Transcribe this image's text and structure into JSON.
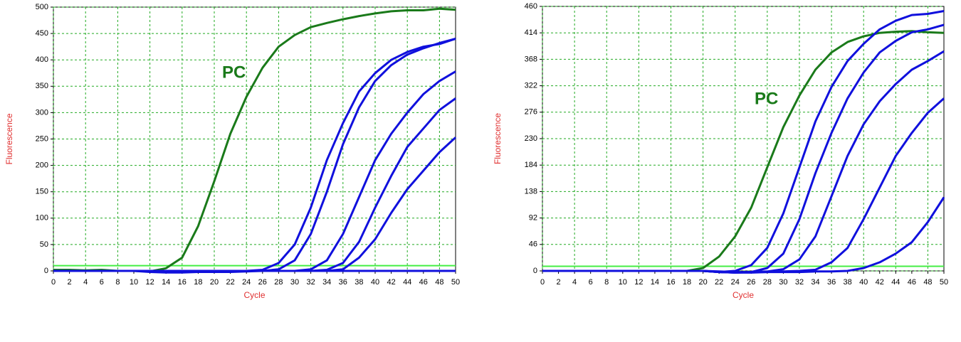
{
  "chart_data": [
    {
      "type": "line",
      "x_label": "Cycle",
      "y_label": "Fluorescence",
      "annotation": "PC",
      "x": [
        0,
        2,
        4,
        6,
        8,
        10,
        12,
        14,
        16,
        18,
        20,
        22,
        24,
        26,
        28,
        30,
        32,
        34,
        36,
        38,
        40,
        42,
        44,
        46,
        48,
        50
      ],
      "xlim": [
        0,
        50
      ],
      "xticks": [
        0,
        2,
        4,
        6,
        8,
        10,
        12,
        14,
        16,
        18,
        20,
        22,
        24,
        26,
        28,
        30,
        32,
        34,
        36,
        38,
        40,
        42,
        44,
        46,
        48,
        50
      ],
      "ylim": [
        0,
        500
      ],
      "yticks": [
        0,
        50,
        100,
        150,
        200,
        250,
        300,
        350,
        400,
        450,
        500
      ],
      "grid": true,
      "grid_color": "#22aa22",
      "threshold": 10,
      "threshold_color": "#44ee44",
      "series": [
        {
          "color": "#1a7a1a",
          "values": [
            2,
            2,
            1,
            2,
            0,
            0,
            -1,
            5,
            25,
            85,
            170,
            260,
            330,
            385,
            425,
            447,
            462,
            470,
            477,
            483,
            488,
            492,
            494,
            494,
            497,
            495
          ]
        },
        {
          "color": "#1010dd",
          "values": [
            0,
            0,
            0,
            0,
            0,
            0,
            0,
            0,
            0,
            0,
            0,
            0,
            0,
            2,
            15,
            50,
            120,
            210,
            280,
            340,
            375,
            400,
            415,
            425,
            430,
            440
          ]
        },
        {
          "color": "#1010dd",
          "values": [
            0,
            0,
            0,
            0,
            0,
            0,
            0,
            0,
            0,
            0,
            0,
            0,
            0,
            0,
            3,
            20,
            70,
            150,
            240,
            310,
            360,
            390,
            410,
            422,
            432,
            440
          ]
        },
        {
          "color": "#1010dd",
          "values": [
            0,
            0,
            0,
            0,
            0,
            0,
            0,
            0,
            0,
            0,
            0,
            0,
            0,
            0,
            0,
            0,
            3,
            20,
            70,
            140,
            210,
            260,
            300,
            335,
            360,
            378
          ]
        },
        {
          "color": "#1010dd",
          "values": [
            0,
            0,
            0,
            0,
            0,
            0,
            0,
            0,
            0,
            0,
            0,
            0,
            0,
            0,
            0,
            0,
            0,
            2,
            15,
            55,
            120,
            180,
            235,
            270,
            305,
            327
          ]
        },
        {
          "color": "#1010dd",
          "values": [
            0,
            0,
            0,
            0,
            0,
            0,
            0,
            0,
            0,
            0,
            0,
            0,
            0,
            0,
            0,
            0,
            0,
            0,
            3,
            25,
            60,
            110,
            155,
            190,
            225,
            253
          ]
        },
        {
          "color": "#1010dd",
          "values": [
            0,
            0,
            0,
            0,
            0,
            0,
            -2,
            -3,
            -3,
            -2,
            -2,
            -2,
            -1,
            0,
            0,
            0,
            0,
            0,
            0,
            0,
            0,
            0,
            0,
            0,
            0,
            0
          ]
        }
      ]
    },
    {
      "type": "line",
      "x_label": "Cycle",
      "y_label": "Fluorescence",
      "annotation": "PC",
      "x": [
        0,
        2,
        4,
        6,
        8,
        10,
        12,
        14,
        16,
        18,
        20,
        22,
        24,
        26,
        28,
        30,
        32,
        34,
        36,
        38,
        40,
        42,
        44,
        46,
        48,
        50
      ],
      "xlim": [
        0,
        50
      ],
      "xticks": [
        0,
        2,
        4,
        6,
        8,
        10,
        12,
        14,
        16,
        18,
        20,
        22,
        24,
        26,
        28,
        30,
        32,
        34,
        36,
        38,
        40,
        42,
        44,
        46,
        48,
        50
      ],
      "ylim": [
        0,
        460
      ],
      "yticks": [
        0,
        46,
        92,
        138,
        184,
        230,
        276,
        322,
        368,
        414,
        460
      ],
      "grid": true,
      "grid_color": "#22aa22",
      "threshold": 8,
      "threshold_color": "#44ee44",
      "series": [
        {
          "color": "#1a7a1a",
          "values": [
            0,
            0,
            0,
            0,
            0,
            0,
            0,
            0,
            0,
            0,
            5,
            25,
            60,
            110,
            180,
            250,
            305,
            350,
            380,
            398,
            408,
            414,
            416,
            417,
            415,
            414
          ]
        },
        {
          "color": "#1010dd",
          "values": [
            0,
            0,
            0,
            0,
            0,
            0,
            0,
            0,
            0,
            0,
            0,
            -2,
            0,
            10,
            40,
            100,
            180,
            260,
            320,
            365,
            395,
            420,
            435,
            445,
            447,
            452
          ]
        },
        {
          "color": "#1010dd",
          "values": [
            0,
            0,
            0,
            0,
            0,
            0,
            0,
            0,
            0,
            0,
            0,
            -2,
            -3,
            -2,
            5,
            30,
            90,
            170,
            240,
            300,
            345,
            380,
            400,
            415,
            420,
            428
          ]
        },
        {
          "color": "#1010dd",
          "values": [
            0,
            0,
            0,
            0,
            0,
            0,
            0,
            0,
            0,
            0,
            0,
            -2,
            -3,
            -2,
            -1,
            3,
            20,
            60,
            130,
            200,
            255,
            295,
            325,
            350,
            365,
            382
          ]
        },
        {
          "color": "#1010dd",
          "values": [
            0,
            0,
            0,
            0,
            0,
            0,
            0,
            0,
            0,
            0,
            0,
            -2,
            -3,
            -3,
            -2,
            -1,
            0,
            2,
            15,
            40,
            90,
            145,
            200,
            240,
            275,
            300
          ]
        },
        {
          "color": "#1010dd",
          "values": [
            0,
            0,
            0,
            0,
            0,
            0,
            0,
            0,
            0,
            0,
            0,
            -1,
            -2,
            -2,
            -2,
            -2,
            -2,
            -1,
            -1,
            0,
            5,
            15,
            30,
            50,
            85,
            128
          ]
        }
      ]
    }
  ]
}
